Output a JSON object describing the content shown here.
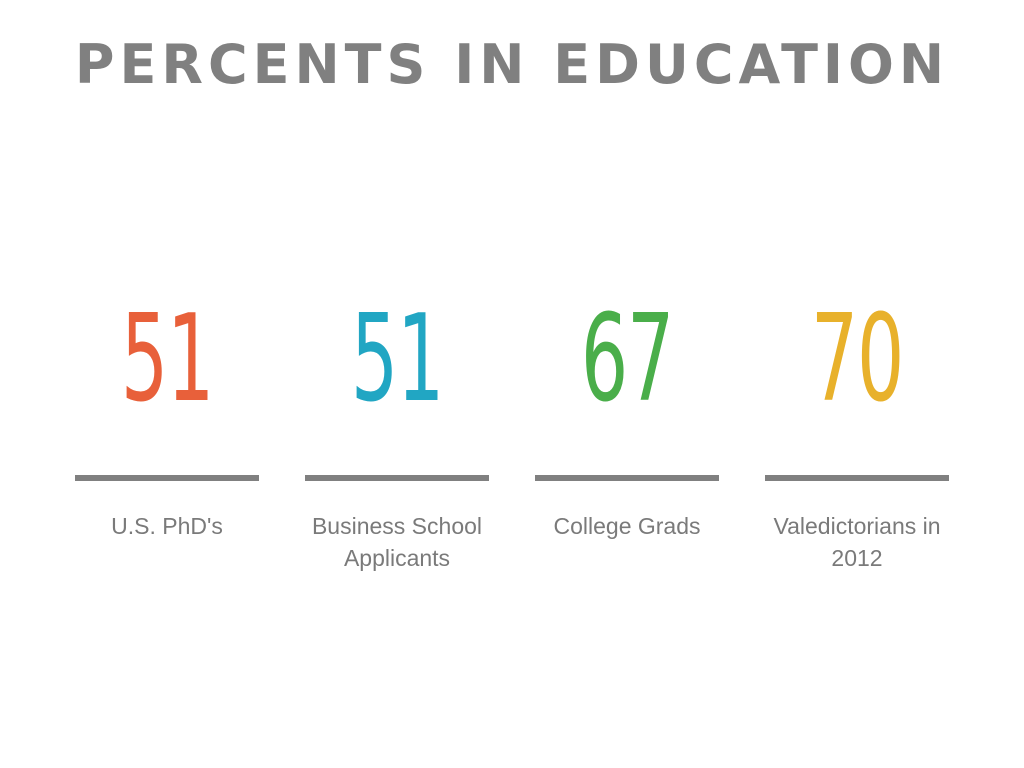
{
  "title": "PERCENTS IN EDUCATION",
  "stats": [
    {
      "value": "51",
      "label": "U.S. PhD's",
      "color": "#e8603a"
    },
    {
      "value": "51",
      "label": "Business School Applicants",
      "color": "#21a6c3"
    },
    {
      "value": "67",
      "label": "College Grads",
      "color": "#4aae4a"
    },
    {
      "value": "70",
      "label": "Valedictorians in 2012",
      "color": "#e8b12b"
    }
  ],
  "rule_color": "#808080"
}
